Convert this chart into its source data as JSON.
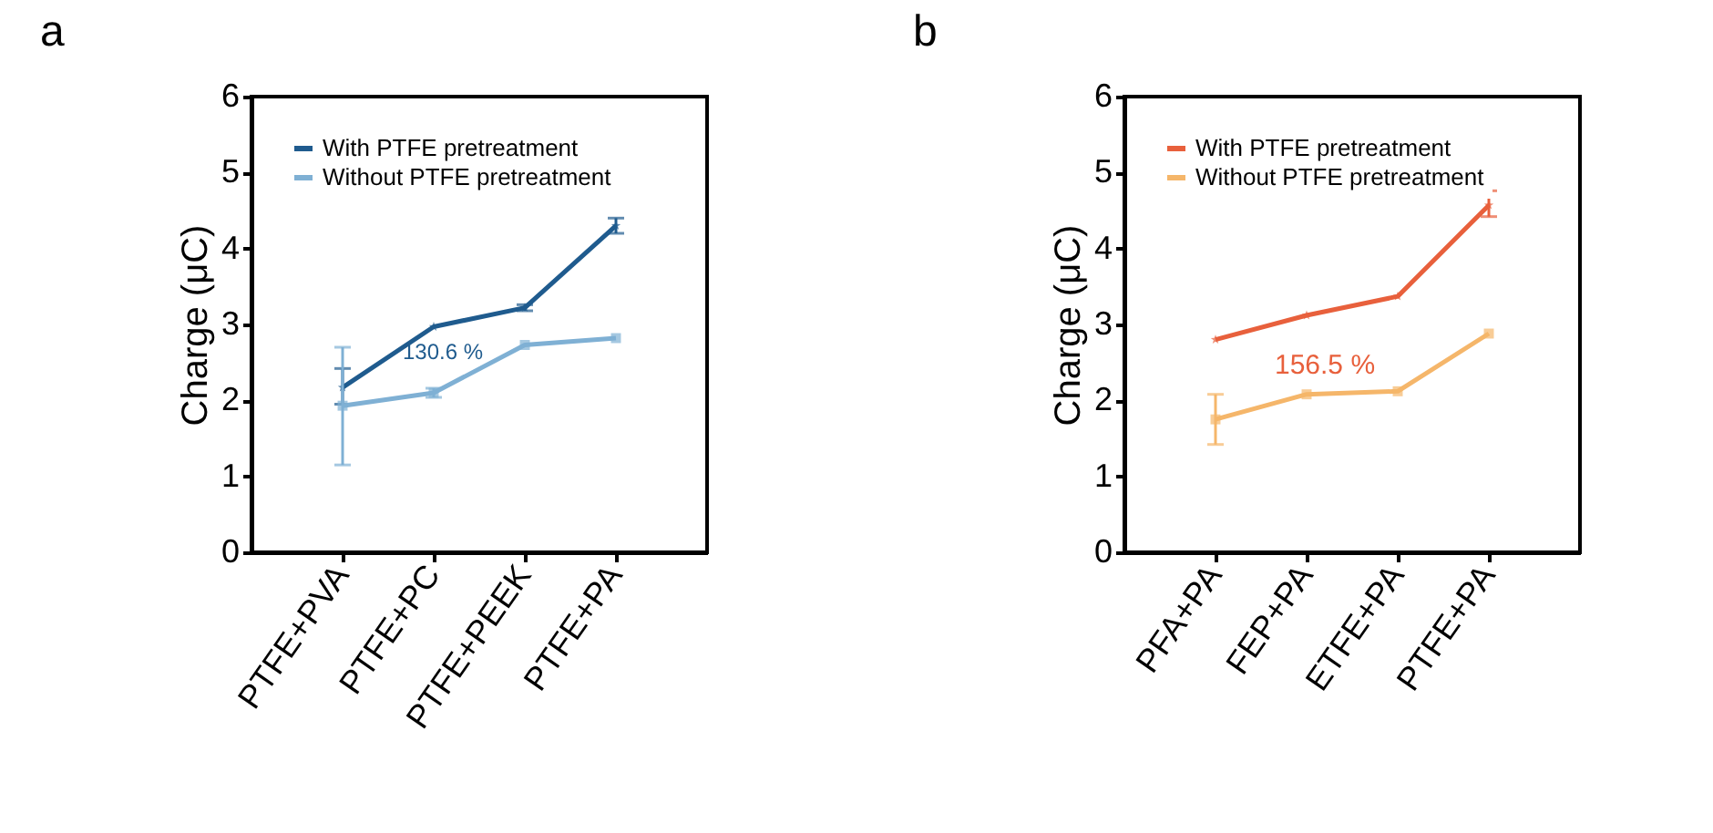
{
  "chart_data": [
    {
      "type": "line",
      "title": "a",
      "ylabel": "Charge (μC)",
      "categories": [
        "PTFE+PVA",
        "PTFE+PC",
        "PTFE+PEEK",
        "PTFE+PA"
      ],
      "ylim": [
        0,
        6
      ],
      "yticks": [
        0,
        1,
        2,
        3,
        4,
        5,
        6
      ],
      "grid": false,
      "legend": "top left",
      "line_style": "solid",
      "series": [
        {
          "name": "With PTFE pretreatment",
          "color": "#1f5b8e",
          "marker": "star",
          "values": [
            2.17,
            2.97,
            3.22,
            4.3
          ],
          "errors": [
            [
              1.95,
              2.42
            ],
            null,
            [
              3.18,
              3.26
            ],
            [
              4.2,
              4.4
            ]
          ]
        },
        {
          "name": "Without PTFE pretreatment",
          "color": "#7fb0d4",
          "marker": "square",
          "values": [
            1.93,
            2.1,
            2.73,
            2.82
          ],
          "errors": [
            [
              1.15,
              2.7
            ],
            [
              2.04,
              2.16
            ],
            null,
            null
          ]
        }
      ],
      "annotations": [
        "130.6 %"
      ]
    },
    {
      "type": "line",
      "title": "b",
      "ylabel": "Charge (μC)",
      "categories": [
        "PFA+PA",
        "FEP+PA",
        "ETFE+PA",
        "PTFE+PA"
      ],
      "ylim": [
        0,
        6
      ],
      "yticks": [
        0,
        1,
        2,
        3,
        4,
        5,
        6
      ],
      "grid": false,
      "legend": "top left",
      "line_style": "solid",
      "series": [
        {
          "name": "With PTFE pretreatment",
          "color": "#e8603c",
          "marker": "star",
          "values": [
            2.8,
            3.12,
            3.37,
            4.57
          ],
          "errors": [
            null,
            null,
            null,
            [
              4.42,
              4.76
            ]
          ]
        },
        {
          "name": "Without PTFE pretreatment",
          "color": "#f5b66a",
          "marker": "square",
          "values": [
            1.75,
            2.08,
            2.12,
            2.88
          ],
          "errors": [
            [
              1.42,
              2.08
            ],
            null,
            null,
            null
          ]
        }
      ],
      "annotations": [
        "156.5 %"
      ]
    }
  ]
}
